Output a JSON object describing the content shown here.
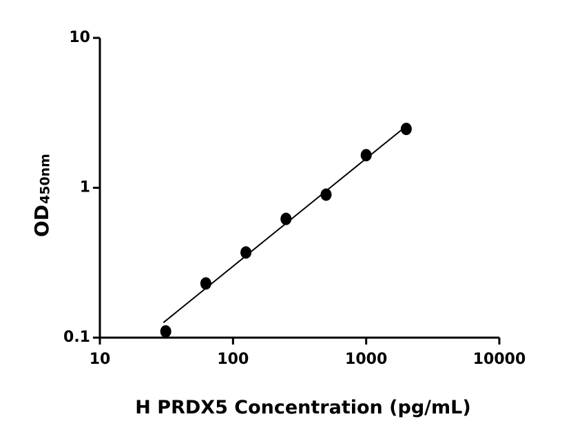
{
  "chart_data": {
    "type": "scatter",
    "x_label": "H PRDX5 Concentration (pg/mL)",
    "y_label": "OD",
    "y_label_sub": "450nm",
    "x": [
      31.25,
      62.5,
      125,
      250,
      500,
      1000,
      2000
    ],
    "values": [
      0.11,
      0.23,
      0.37,
      0.62,
      0.9,
      1.65,
      2.47
    ],
    "color": "#000000",
    "fit_line": {
      "x": [
        30,
        2000
      ],
      "y": [
        0.126,
        2.58
      ]
    },
    "xscale": "log",
    "yscale": "log",
    "xlim": [
      10,
      10000
    ],
    "ylim": [
      0.1,
      10
    ],
    "xticks": [
      10,
      100,
      1000,
      10000
    ],
    "yticks": [
      0.1,
      1,
      10
    ]
  }
}
